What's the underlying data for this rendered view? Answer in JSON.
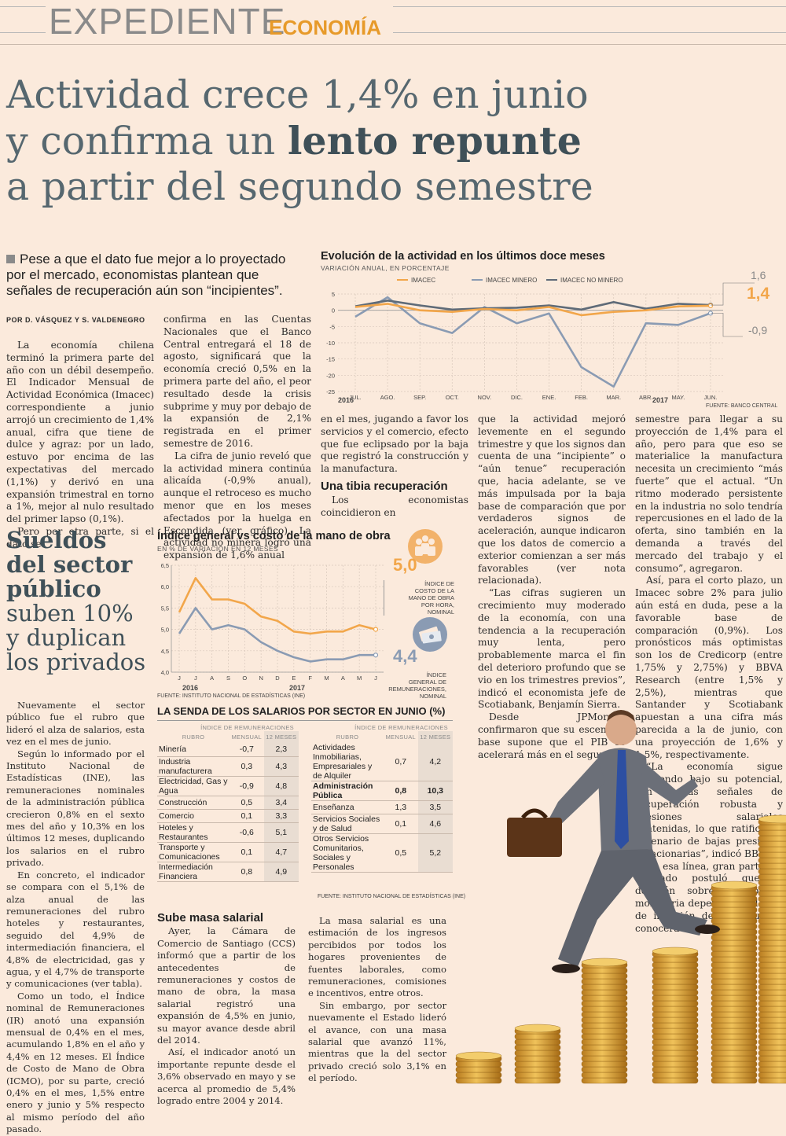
{
  "header": {
    "section": "EXPEDIENTE",
    "subsection": "ECONOMÍA"
  },
  "headline": {
    "line1": "Actividad crece 1,4% en junio",
    "line2a": "y confirma un ",
    "line2b": "lento repunte",
    "line3": "a partir del segundo semestre"
  },
  "lead": "Pese a que el dato fue mejor a lo proyectado por el mercado, economistas plantean que señales de recuperación aún son “incipientes”.",
  "byline": "POR D. VÁSQUEZ Y S. VALDENEGRO",
  "col1": [
    "La economía chilena terminó la primera parte del año con un débil desempeño. El Indicador Mensual de Actividad Económica (Imacec) correspondiente a junio arrojó un crecimiento de 1,4% anual, cifra que tiene de dulce y agraz: por un lado, estuvo por encima de las expectativas del mercado (1,1%) y derivó en una expansión trimestral en torno a 1%, mejor al nulo resultado del primer lapso (0,1%).",
    "Pero por otra parte, si el dato se"
  ],
  "col2": [
    "confirma en las Cuentas Nacionales que el Banco Central entregará el 18 de agosto, significará que la economía creció 0,5% en la primera parte del año, el peor resultado desde la crisis subprime y muy por debajo de la expansión de 2,1% registrada en el primer semestre de 2016.",
    "La cifra de junio reveló que la actividad minera continúa alicaída (-0,9% anual), aunque el retroceso es mucho menor que en los meses afectados por la huelga en Escondida (ver gráfico). La actividad no minera logró una expansión de 1,6% anual"
  ],
  "col3": {
    "p1": "en el mes, jugando a favor los servicios y el comercio, efecto que fue eclipsado por la baja que registró la construcción y la manufactura.",
    "heading": "Una tibia recuperación",
    "p2": "Los economistas coincidieron en"
  },
  "col4": [
    "que la actividad mejoró levemente en el segundo trimestre y que los signos dan cuenta de una “incipiente” o “aún tenue” recuperación que, hacia adelante, se ve más impulsada por la baja base de comparación que por verdaderos signos de aceleración, aunque indicaron que los datos de comercio a exterior comienzan a ser más favorables (ver nota relacionada).",
    "“Las cifras sugieren un crecimiento muy moderado de la economía, con una tendencia a la recuperación muy lenta, pero probablemente marca el fin del deterioro profundo que se vio en los trimestres previos”, indicó el economista jefe de Scotiabank, Benjamín Sierra.",
    "Desde JPMorgan confirmaron que su escenario base supone que el PIB se acelerará más en el segundo"
  ],
  "col5": [
    "semestre para llegar a su proyección de 1,4% para el año, pero para que eso se materialice la manufactura necesita un crecimiento “más fuerte” que el actual. “Un ritmo moderado persistente en la industria no solo tendría repercusiones en el lado de la oferta, sino también en la demanda a través del mercado del trabajo y el consumo”, agregaron.",
    "Así, para el corto plazo, un Imacec sobre 2% para julio aún está en duda, pese a la favorable base de comparación (0,9%). Los pronósticos más optimistas son los de Credicorp (entre 1,75% y 2,75%) y BBVA Research (entre 1,5% y 2,5%), mientras que Santander y Scotiabank apuestan a una cifra más parecida a la de junio, con una proyección de 1,6% y 1,5%, respectivamente.",
    "“La economía sigue creciendo bajo su potencial, con pocas señales de recuperación robusta y presiones salariales contenidas, lo que ratifica un escenario de bajas presiones inflacionarias”, indicó BBVA.",
    "En esa línea, gran parte del mercado postuló que la decisión sobre la política monetaria dependerá del dato de inflación de julio que se conocerá hoy."
  ],
  "sueldos": {
    "l1": "Sueldos",
    "l2": "del sector",
    "l3": "público",
    "l4": "suben 10%",
    "l5": "y duplican",
    "l6": "los privados"
  },
  "col_s1": [
    "Nuevamente el sector público fue el rubro que lideró el alza de salarios, esta vez en el mes de junio.",
    "Según lo informado por el Instituto Nacional de Estadísticas (INE), las remuneraciones nominales de la administración pública crecieron 0,8% en el sexto mes del año y 10,3% en los últimos 12 meses, duplicando los salarios en el rubro privado.",
    "En concreto, el indicador se compara con el 5,1% de alza anual de las remuneraciones del rubro hoteles y restaurantes, seguido del 4,9% de intermediación financiera, el 4,8% de electricidad, gas y agua, y el 4,7% de transporte y comunicaciones (ver tabla).",
    "Como un todo, el Índice nominal de Remuneraciones (IR) anotó una expansión mensual de 0,4% en el mes, acumulando 1,8% en el año y 4,4% en 12 meses. El Índice de Costo de Mano de Obra (ICMO), por su parte, creció 0,4% en el mes, 1,5% entre enero y junio y 5% respecto al mismo período del año pasado."
  ],
  "col_s2": {
    "heading": "Sube masa salarial",
    "p1": "Ayer, la Cámara de Comercio de Santiago (CCS) informó que a partir de los antecedentes de remuneraciones y costos de mano de obra, la masa salarial registró una expansión de 4,5% en junio, su mayor avance desde abril del 2014.",
    "p2": "Así, el indicador anotó un importante repunte desde el 3,6% observado en mayo y se acerca al promedio de 5,4% logrado entre 2004 y 2014."
  },
  "col_s3": [
    "La masa salarial es una estimación de los ingresos percibidos por todos los hogares provenientes de fuentes laborales, como remuneraciones, comisiones e incentivos, entre otros.",
    "Sin embargo, por sector nuevamente el Estado lideró el avance, con una masa salarial que avanzó 11%, mientras que la del sector privado creció solo 3,1% en el período."
  ],
  "chart1": {
    "title": "Evolución de la actividad en los últimos doce meses",
    "subtitle": "VARIACIÓN ANUAL, EN PORCENTAJE",
    "source": "FUENTE: BANCO CENTRAL",
    "years": [
      "2016",
      "2017"
    ],
    "end_labels": {
      "top": "1,6",
      "mid": "1,4",
      "bot": "-0,9"
    }
  },
  "chart2": {
    "title": "Índice general vs costo de la mano de obra",
    "subtitle": "EN % DE VARIACIÓN EN 12 MESES",
    "source": "FUENTE: INSTITUTO NACIONAL DE ESTADÍSTICAS (INE)",
    "years": [
      "2016",
      "2017"
    ],
    "val_top": "5,0",
    "val_bot": "4,4",
    "label_top": [
      "ÍNDICE DE",
      "COSTO DE LA",
      "MANO DE OBRA",
      "POR HORA,",
      "NOMINAL"
    ],
    "label_bot": [
      "ÍNDICE",
      "GENERAL DE",
      "REMUNERACIONES,",
      "NOMINAL"
    ]
  },
  "chart_data": [
    {
      "type": "line",
      "title": "Evolución de la actividad en los últimos doce meses",
      "subtitle": "VARIACIÓN ANUAL, EN PORCENTAJE",
      "categories": [
        "JUL.",
        "AGO.",
        "SEP.",
        "OCT.",
        "NOV.",
        "DIC.",
        "ENE.",
        "FEB.",
        "MAR.",
        "ABR.",
        "MAY.",
        "JUN."
      ],
      "series": [
        {
          "name": "IMACEC",
          "color": "#f2a64a",
          "values": [
            1.0,
            2.0,
            0.0,
            -0.5,
            0.4,
            0.0,
            1.0,
            -1.5,
            -0.5,
            0.0,
            1.2,
            1.4
          ]
        },
        {
          "name": "IMACEC MINERO",
          "color": "#8a9bb3",
          "values": [
            -2.0,
            4.0,
            -4.0,
            -7.0,
            1.0,
            -4.0,
            -1.0,
            -17.5,
            -23.5,
            -4.0,
            -4.5,
            -0.9
          ]
        },
        {
          "name": "IMACEC NO MINERO",
          "color": "#5f6b78",
          "values": [
            1.2,
            3.0,
            1.5,
            0.2,
            0.6,
            0.8,
            1.5,
            0.2,
            2.5,
            0.5,
            2.0,
            1.6
          ]
        }
      ],
      "ylim": [
        -25,
        5
      ],
      "yticks": [
        5,
        0,
        -5,
        -10,
        -15,
        -20,
        -25
      ],
      "grid": true,
      "legend": "top"
    },
    {
      "type": "line",
      "title": "Índice general vs costo de la mano de obra",
      "subtitle": "EN % DE VARIACIÓN EN 12 MESES",
      "categories": [
        "J",
        "J",
        "A",
        "S",
        "O",
        "N",
        "D",
        "E",
        "F",
        "M",
        "A",
        "M",
        "J"
      ],
      "series": [
        {
          "color": "#f2a64a",
          "values": [
            5.4,
            6.2,
            5.7,
            5.7,
            5.6,
            5.3,
            5.2,
            4.95,
            4.9,
            4.95,
            4.95,
            5.1,
            5.0
          ]
        },
        {
          "color": "#8a9bb3",
          "values": [
            4.9,
            5.5,
            5.0,
            5.1,
            5.0,
            4.7,
            4.5,
            4.35,
            4.25,
            4.3,
            4.3,
            4.4,
            4.4
          ]
        }
      ],
      "ylim": [
        4.0,
        6.5
      ],
      "yticks": [
        6.5,
        6.0,
        5.5,
        5.0,
        4.5,
        4.0
      ],
      "grid": true
    },
    {
      "type": "table",
      "title": "LA SENDA DE LOS SALARIOS POR SECTOR EN JUNIO (%)",
      "group_header": "ÍNDICE DE REMUNERACIONES",
      "columns": [
        "RUBRO",
        "MENSUAL",
        "12 MESES"
      ],
      "rows_left": [
        [
          "Minería",
          "-0,7",
          "2,3"
        ],
        [
          "Industria manufacturera",
          "0,3",
          "4,3"
        ],
        [
          "Electricidad, Gas y Agua",
          "-0,9",
          "4,8"
        ],
        [
          "Construcción",
          "0,5",
          "3,4"
        ],
        [
          "Comercio",
          "0,1",
          "3,3"
        ],
        [
          "Hoteles y Restaurantes",
          "-0,6",
          "5,1"
        ],
        [
          "Transporte y Comunicaciones",
          "0,1",
          "4,7"
        ],
        [
          "Intermediación Financiera",
          "0,8",
          "4,9"
        ]
      ],
      "rows_right": [
        [
          "Actividades Inmobiliarias, Empresariales y de Alquiler",
          "0,7",
          "4,2"
        ],
        [
          "Administración Pública",
          "0,8",
          "10,3"
        ],
        [
          "Enseñanza",
          "1,3",
          "3,5"
        ],
        [
          "Servicios Sociales y de Salud",
          "0,1",
          "4,6"
        ],
        [
          "Otros Servicios Comunitarios, Sociales y Personales",
          "0,5",
          "5,2"
        ]
      ],
      "source": "FUENTE: INSTITUTO NACIONAL DE ESTADÍSTICAS (INE)"
    }
  ]
}
